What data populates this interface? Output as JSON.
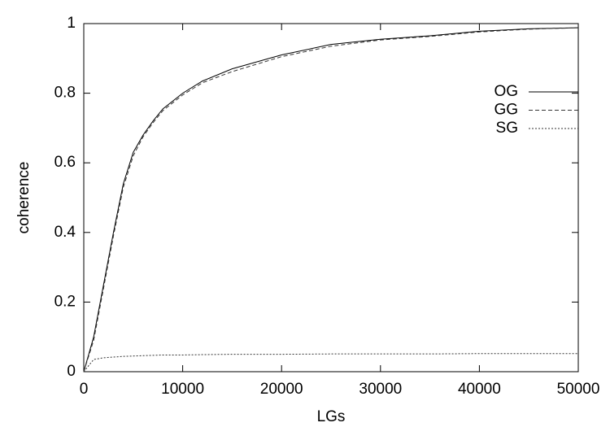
{
  "chart_data": {
    "type": "line",
    "xlabel": "LGs",
    "ylabel": "coherence",
    "x": [
      0,
      1000,
      2000,
      3000,
      4000,
      5000,
      6000,
      7000,
      8000,
      10000,
      12000,
      15000,
      20000,
      25000,
      30000,
      35000,
      40000,
      45000,
      50000
    ],
    "series": [
      {
        "name": "OG",
        "color": "#000000",
        "dash": "solid",
        "values": [
          0,
          0.1,
          0.25,
          0.4,
          0.54,
          0.63,
          0.68,
          0.72,
          0.755,
          0.8,
          0.835,
          0.87,
          0.91,
          0.94,
          0.955,
          0.965,
          0.978,
          0.985,
          0.988
        ]
      },
      {
        "name": "GG",
        "color": "#333333",
        "dash": "dashed",
        "values": [
          0,
          0.09,
          0.24,
          0.39,
          0.53,
          0.62,
          0.675,
          0.715,
          0.75,
          0.795,
          0.83,
          0.862,
          0.905,
          0.935,
          0.953,
          0.963,
          0.976,
          0.984,
          0.988
        ]
      },
      {
        "name": "SG",
        "color": "#333333",
        "dash": "dotted",
        "values": [
          0,
          0.035,
          0.04,
          0.042,
          0.044,
          0.045,
          0.046,
          0.047,
          0.048,
          0.048,
          0.049,
          0.05,
          0.05,
          0.051,
          0.051,
          0.051,
          0.052,
          0.052,
          0.052
        ]
      }
    ],
    "xlim": [
      0,
      50000
    ],
    "xticks": [
      0,
      10000,
      20000,
      30000,
      40000,
      50000
    ],
    "ylim": [
      0,
      1
    ],
    "yticks": [
      0,
      0.2,
      0.4,
      0.6,
      0.8,
      1
    ],
    "grid": false,
    "legend": "top-right"
  }
}
